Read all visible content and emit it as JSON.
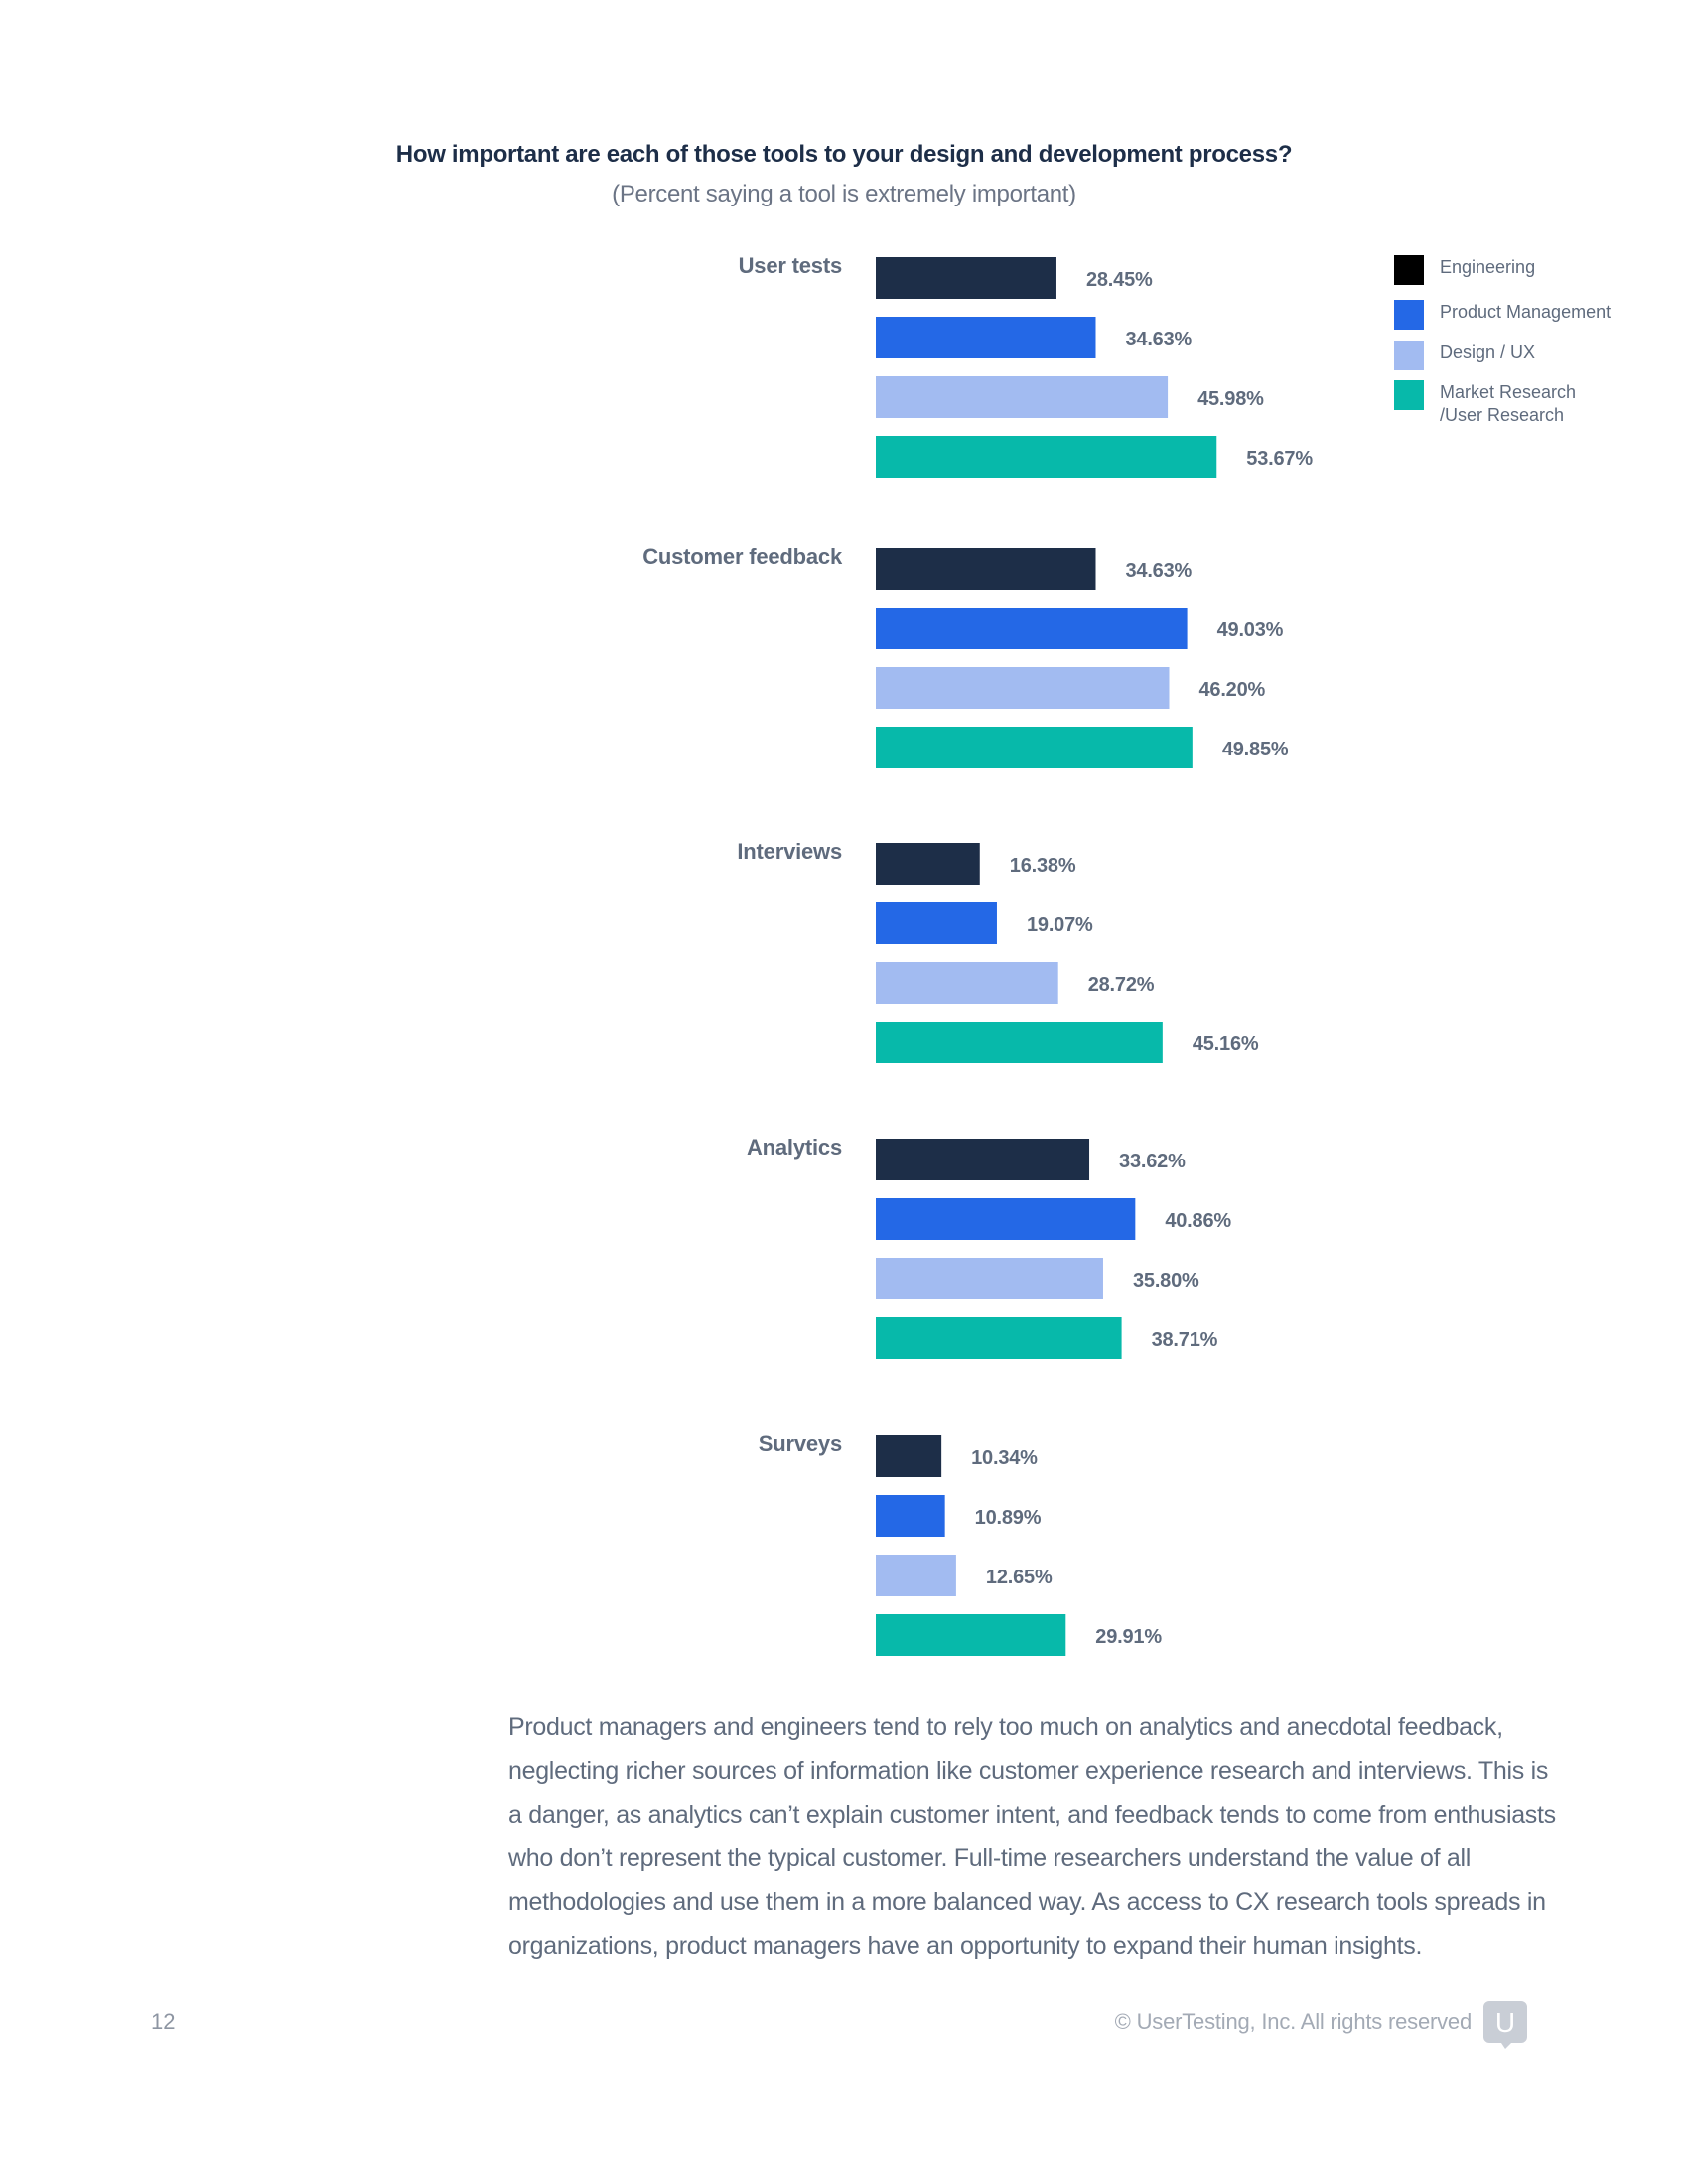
{
  "chart_data": {
    "type": "bar",
    "orientation": "horizontal",
    "title": "How important are each of those tools to your design and development process?",
    "subtitle": "(Percent saying a tool is extremely important)",
    "categories": [
      "User tests",
      "Customer feedback",
      "Interviews",
      "Analytics",
      "Surveys"
    ],
    "series": [
      {
        "name": "Engineering",
        "color": "#1d2e48",
        "values": [
          28.45,
          34.63,
          16.38,
          33.62,
          10.34
        ],
        "labels": [
          "28.45%",
          "34.63%",
          "16.38%",
          "33.62%",
          "10.34%"
        ]
      },
      {
        "name": "Product Management",
        "color": "#2468e6",
        "values": [
          34.63,
          49.03,
          19.07,
          40.86,
          10.89
        ],
        "labels": [
          "34.63%",
          "49.03%",
          "19.07%",
          "40.86%",
          "10.89%"
        ]
      },
      {
        "name": "Design / UX",
        "color": "#a2bbf1",
        "values": [
          45.98,
          46.2,
          28.72,
          35.8,
          12.65
        ],
        "labels": [
          "45.98%",
          "46.20%",
          "28.72%",
          "35.80%",
          "12.65%"
        ]
      },
      {
        "name": "Market Research\n/User Research",
        "color": "#07b9aa",
        "values": [
          53.67,
          49.85,
          45.16,
          38.71,
          29.91
        ],
        "labels": [
          "53.67%",
          "49.85%",
          "45.16%",
          "38.71%",
          "29.91%"
        ]
      }
    ],
    "legend": {
      "position": "top-right",
      "swatch_colors": [
        "#000000",
        "#2468e6",
        "#a2bbf1",
        "#07b9aa"
      ]
    },
    "grid": false
  },
  "body_text": "Product managers and engineers tend to rely too much on analytics and anecdotal feedback, neglecting richer sources of information like customer experience research and interviews. This is a danger, as analytics can’t explain customer intent, and feedback tends to come from enthusiasts who don’t represent the typical customer. Full-time researchers understand the value of all methodologies and use them in a more balanced way. As access to CX research tools spreads in organizations, product managers have an opportunity to expand their human insights.",
  "footer": {
    "page_number": "12",
    "copyright": "© UserTesting, Inc. All rights reserved",
    "logo_letter": "U",
    "logo_color": "#c9ced6"
  }
}
